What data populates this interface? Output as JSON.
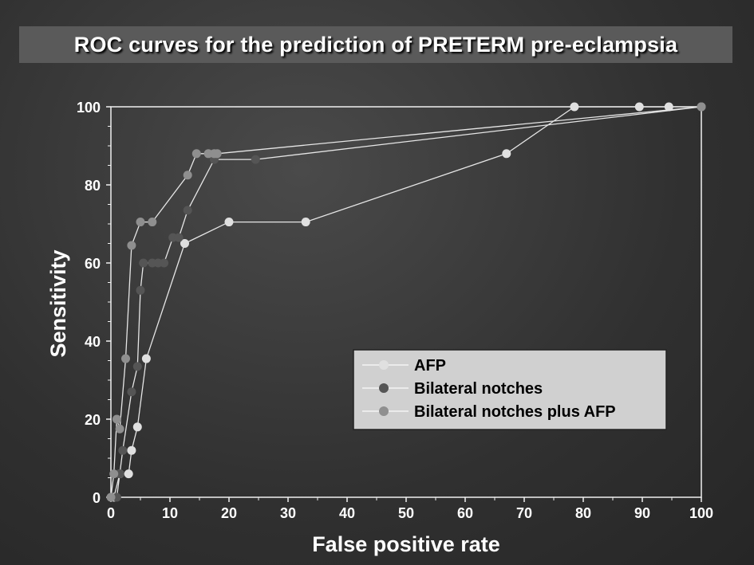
{
  "chart_data": {
    "type": "line",
    "title": "ROC curves for the prediction of PRETERM pre-eclampsia",
    "xlabel": "False positive rate",
    "ylabel": "Sensitivity",
    "xlim": [
      0,
      100
    ],
    "ylim": [
      0,
      100
    ],
    "xticks": [
      "0",
      "10",
      "20",
      "30",
      "40",
      "50",
      "60",
      "70",
      "80",
      "90",
      "100"
    ],
    "yticks": [
      "0",
      "20",
      "40",
      "60",
      "80",
      "100"
    ],
    "grid": false,
    "legend_position": "bottom-right",
    "series": [
      {
        "name": "AFP",
        "color": "#e0e0e0",
        "points": [
          [
            0.5,
            0
          ],
          [
            1.5,
            6
          ],
          [
            3,
            6
          ],
          [
            3.5,
            12
          ],
          [
            4.5,
            18
          ],
          [
            6,
            35.5
          ],
          [
            12.5,
            65
          ],
          [
            20,
            70.5
          ],
          [
            33,
            70.5
          ],
          [
            67,
            88
          ],
          [
            78.5,
            100
          ],
          [
            89.5,
            100
          ],
          [
            94.5,
            100
          ],
          [
            100,
            100
          ]
        ]
      },
      {
        "name": "Bilateral notches",
        "color": "#555555",
        "points": [
          [
            0,
            0
          ],
          [
            1,
            0
          ],
          [
            1.5,
            6
          ],
          [
            2,
            12
          ],
          [
            3.5,
            27
          ],
          [
            4.5,
            33.5
          ],
          [
            5,
            53
          ],
          [
            5.5,
            60
          ],
          [
            7,
            60
          ],
          [
            8,
            60
          ],
          [
            9,
            60
          ],
          [
            10.5,
            66.5
          ],
          [
            11.5,
            66.5
          ],
          [
            13,
            73.5
          ],
          [
            17.5,
            86.5
          ],
          [
            24.5,
            86.5
          ],
          [
            100,
            100
          ]
        ]
      },
      {
        "name": "Bilateral notches plus AFP",
        "color": "#8f8f8f",
        "points": [
          [
            0,
            0
          ],
          [
            0.5,
            6
          ],
          [
            1,
            20
          ],
          [
            1.5,
            17.5
          ],
          [
            2.5,
            35.5
          ],
          [
            3.5,
            64.5
          ],
          [
            5,
            70.5
          ],
          [
            7,
            70.5
          ],
          [
            13,
            82.5
          ],
          [
            14.5,
            88
          ],
          [
            16.5,
            88
          ],
          [
            17.5,
            88
          ],
          [
            18,
            88
          ],
          [
            100,
            100
          ]
        ]
      }
    ]
  }
}
